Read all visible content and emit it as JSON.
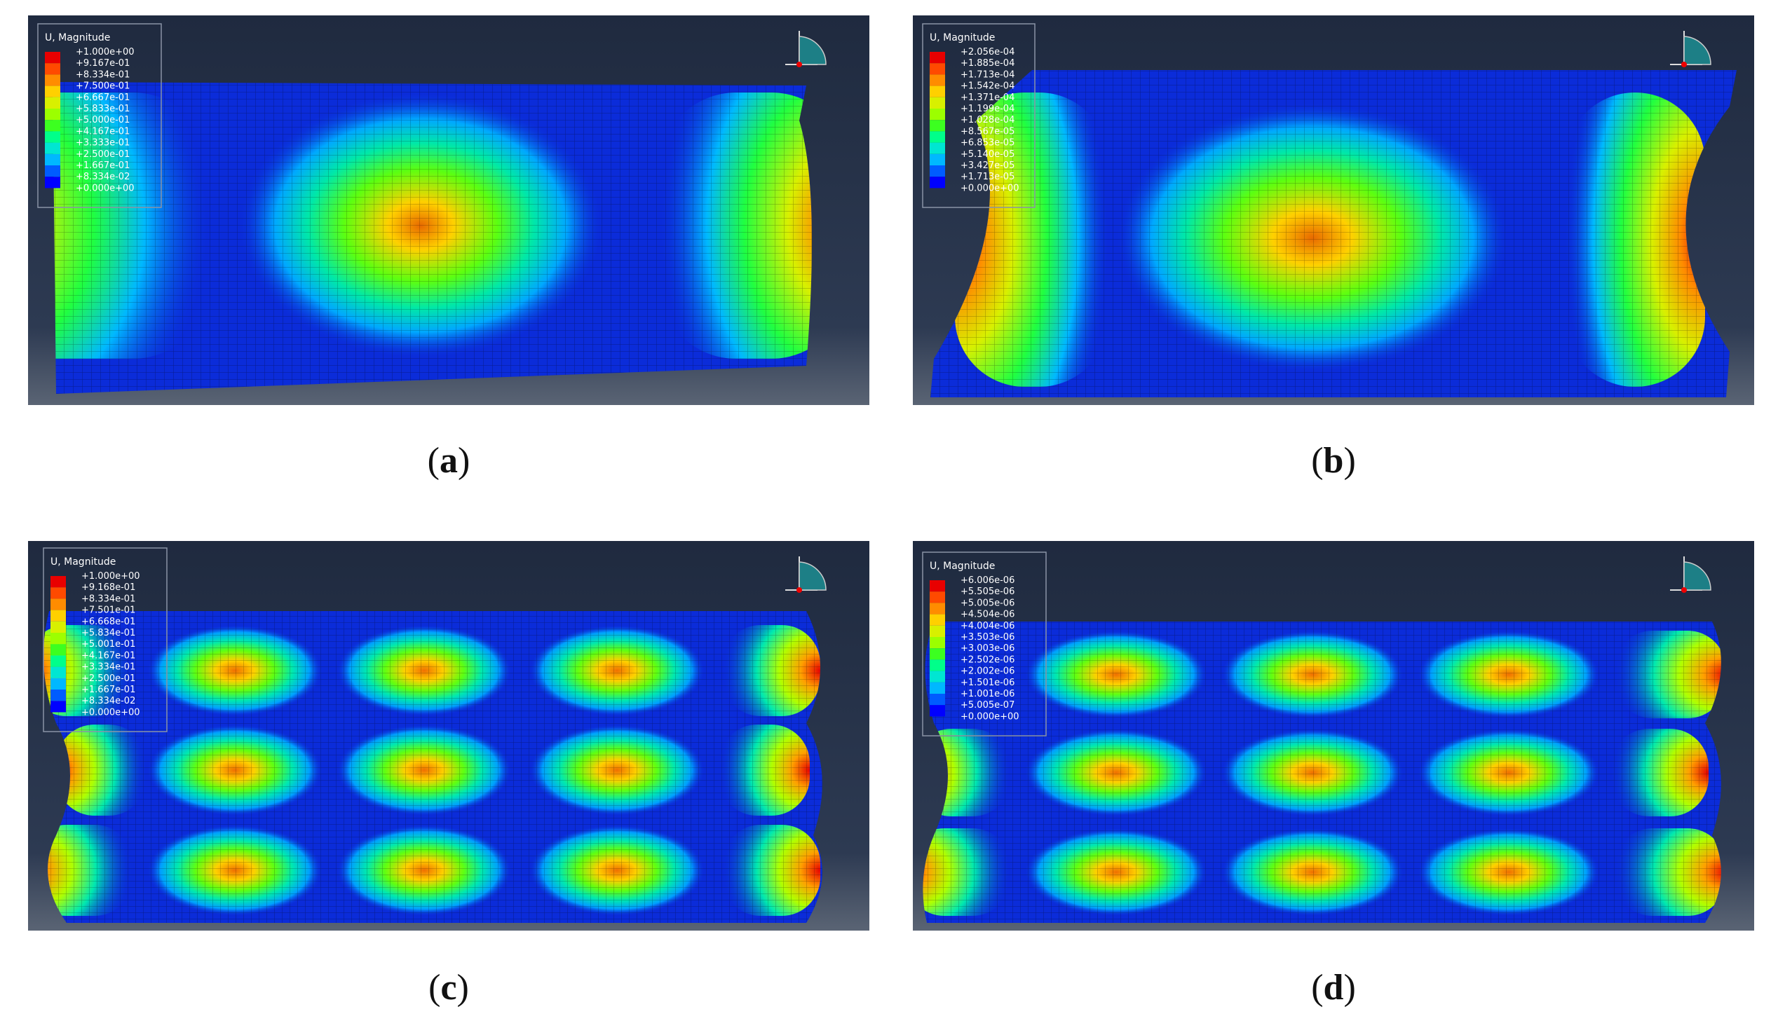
{
  "colors": {
    "background_top": "#1f2a3f",
    "background_bottom": "#5a6474",
    "mesh_base": "#0b2cd9",
    "contour": [
      "#0000ff",
      "#005cff",
      "#00b8ff",
      "#00e6d2",
      "#00ff8a",
      "#3cff20",
      "#9cff00",
      "#d8f000",
      "#ffd000",
      "#ff8c00",
      "#ff4a00",
      "#e80000"
    ]
  },
  "panels": [
    {
      "label": "a",
      "legend": {
        "title": "U, Magnitude",
        "values": [
          "+1.000e+00",
          "+9.167e-01",
          "+8.334e-01",
          "+7.500e-01",
          "+6.667e-01",
          "+5.833e-01",
          "+5.000e-01",
          "+4.167e-01",
          "+3.333e-01",
          "+2.500e-01",
          "+1.667e-01",
          "+8.334e-02",
          "+0.000e+00"
        ]
      }
    },
    {
      "label": "b",
      "legend": {
        "title": "U, Magnitude",
        "values": [
          "+2.056e-04",
          "+1.885e-04",
          "+1.713e-04",
          "+1.542e-04",
          "+1.371e-04",
          "+1.199e-04",
          "+1.028e-04",
          "+8.567e-05",
          "+6.853e-05",
          "+5.140e-05",
          "+3.427e-05",
          "+1.713e-05",
          "+0.000e+00"
        ]
      }
    },
    {
      "label": "c",
      "legend": {
        "title": "U, Magnitude",
        "values": [
          "+1.000e+00",
          "+9.168e-01",
          "+8.334e-01",
          "+7.501e-01",
          "+6.668e-01",
          "+5.834e-01",
          "+5.001e-01",
          "+4.167e-01",
          "+3.334e-01",
          "+2.500e-01",
          "+1.667e-01",
          "+8.334e-02",
          "+0.000e+00"
        ]
      }
    },
    {
      "label": "d",
      "legend": {
        "title": "U, Magnitude",
        "values": [
          "+6.006e-06",
          "+5.505e-06",
          "+5.005e-06",
          "+4.504e-06",
          "+4.004e-06",
          "+3.503e-06",
          "+3.003e-06",
          "+2.502e-06",
          "+2.002e-06",
          "+1.501e-06",
          "+1.001e-06",
          "+5.005e-07",
          "+0.000e+00"
        ]
      }
    }
  ]
}
